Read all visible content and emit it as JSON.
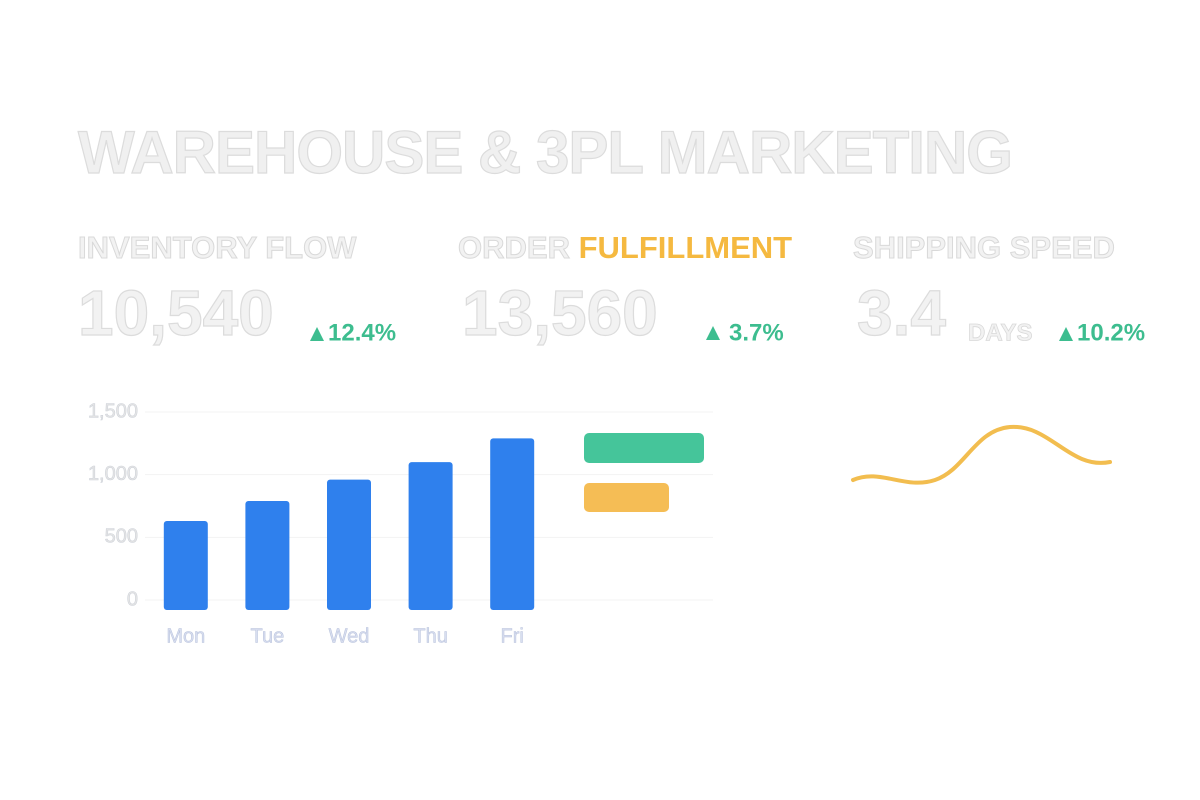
{
  "header": {
    "title": "WAREHOUSE & 3PL MARKETING"
  },
  "kpis": [
    {
      "label": "INVENTORY FLOW",
      "value": "10,540",
      "change": "12.4%"
    },
    {
      "label": "ORDER",
      "label_highlight": "FULFILLMENT",
      "value": "13,560",
      "change": "3.7%"
    },
    {
      "label": "SHIPPING SPEED",
      "value": "3.4",
      "unit": "DAYS",
      "change": "10.2%"
    }
  ],
  "chart_data": {
    "type": "bar",
    "categories": [
      "Mon",
      "Tue",
      "Wed",
      "Thu",
      "Fri"
    ],
    "values": [
      630,
      790,
      960,
      1100,
      1290
    ],
    "color": "#2f80ed",
    "ylim": [
      0,
      1500
    ],
    "yticks": [
      0,
      500,
      {
        "value": 1000,
        "label": "1,000"
      },
      {
        "value": 1500,
        "label": "1,500"
      }
    ],
    "grid": true
  }
}
